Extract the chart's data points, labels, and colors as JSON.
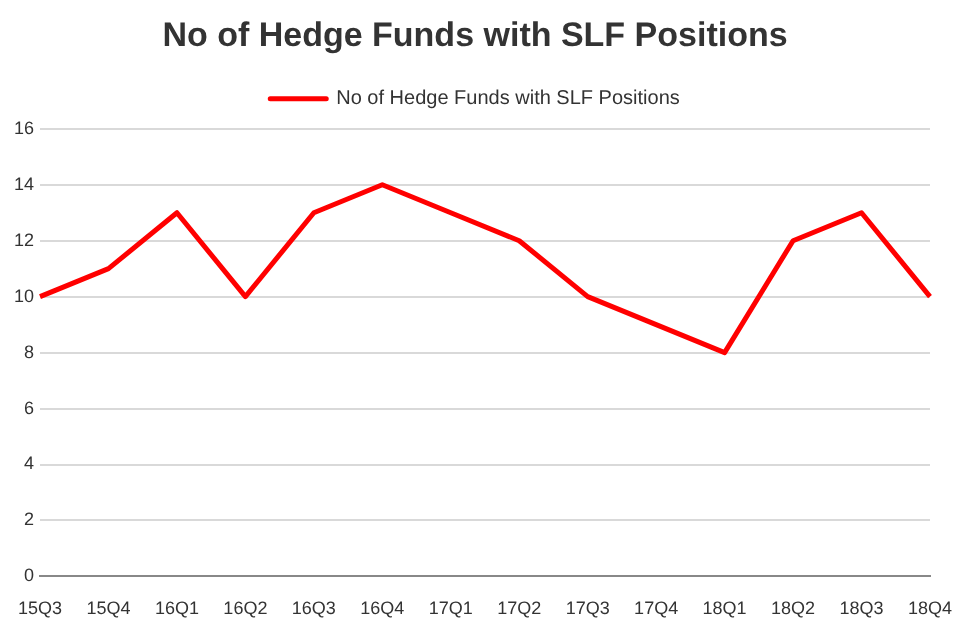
{
  "chart_data": {
    "type": "line",
    "title": "No of Hedge Funds with SLF Positions",
    "categories": [
      "15Q3",
      "15Q4",
      "16Q1",
      "16Q2",
      "16Q3",
      "16Q4",
      "17Q1",
      "17Q2",
      "17Q3",
      "17Q4",
      "18Q1",
      "18Q2",
      "18Q3",
      "18Q4"
    ],
    "series": [
      {
        "name": "No of Hedge Funds with SLF Positions",
        "color": "#ff0000",
        "values": [
          10,
          11,
          13,
          10,
          13,
          14,
          13,
          12,
          10,
          9,
          8,
          12,
          13,
          10
        ]
      }
    ],
    "ylim": [
      0,
      16
    ],
    "yticks": [
      0,
      2,
      4,
      6,
      8,
      10,
      12,
      14,
      16
    ],
    "grid": "y",
    "legend": "top",
    "marker": "none",
    "line_style": "solid"
  }
}
